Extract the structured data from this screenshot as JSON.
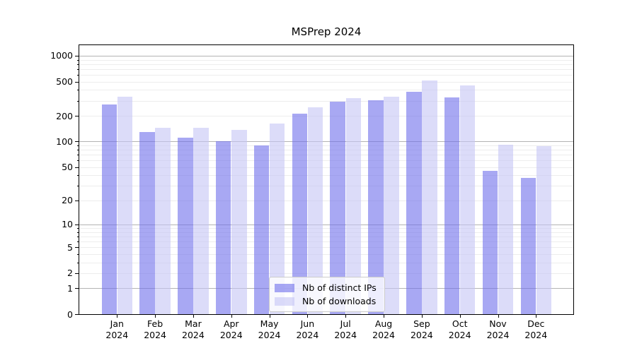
{
  "title": "MSPrep 2024",
  "chart_data": {
    "type": "bar",
    "title": "MSPrep 2024",
    "categories": [
      "Jan 2024",
      "Feb 2024",
      "Mar 2024",
      "Apr 2024",
      "May 2024",
      "Jun 2024",
      "Jul 2024",
      "Aug 2024",
      "Sep 2024",
      "Oct 2024",
      "Nov 2024",
      "Dec 2024"
    ],
    "series": [
      {
        "name": "Nb of distinct IPs",
        "color": "rgba(110,110,235,0.6)",
        "values": [
          270,
          130,
          110,
          100,
          90,
          213,
          292,
          303,
          380,
          330,
          45,
          37
        ]
      },
      {
        "name": "Nb of downloads",
        "color": "rgba(196,196,245,0.6)",
        "values": [
          335,
          146,
          145,
          137,
          162,
          249,
          320,
          335,
          518,
          452,
          91,
          88
        ]
      }
    ],
    "xlabel": "",
    "ylabel": "",
    "y_scale": "log10(1+v)",
    "y_ticks": [
      0,
      1,
      2,
      5,
      10,
      20,
      50,
      100,
      200,
      500,
      1000
    ],
    "ylim": [
      0,
      1326
    ],
    "grid": "on",
    "legend_position": "lower-center"
  }
}
